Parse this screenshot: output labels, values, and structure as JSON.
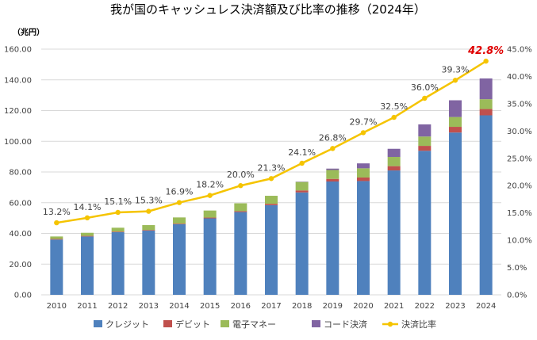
{
  "chart_data": {
    "type": "bar",
    "title": "我が国のキャッシュレス決済額及び比率の推移（2024年）",
    "y_unit_label": "（兆円）",
    "categories": [
      "2010",
      "2011",
      "2012",
      "2013",
      "2014",
      "2015",
      "2016",
      "2017",
      "2018",
      "2019",
      "2020",
      "2021",
      "2022",
      "2023",
      "2024"
    ],
    "series": [
      {
        "name": "クレジット",
        "color": "#4f81bd",
        "values": [
          36.0,
          38.0,
          40.8,
          41.8,
          46.0,
          49.8,
          53.9,
          58.4,
          66.7,
          73.8,
          74.1,
          81.0,
          93.8,
          105.7,
          116.9
        ]
      },
      {
        "name": "デビット",
        "color": "#c0504d",
        "values": [
          0.4,
          0.4,
          0.4,
          0.4,
          0.4,
          0.5,
          0.6,
          0.9,
          1.3,
          1.7,
          2.3,
          2.8,
          3.2,
          3.7,
          4.1
        ]
      },
      {
        "name": "電子マネー",
        "color": "#9bbb59",
        "values": [
          1.6,
          2.0,
          2.5,
          3.2,
          4.0,
          4.6,
          5.1,
          5.2,
          5.5,
          5.8,
          6.0,
          6.0,
          6.1,
          6.4,
          6.4
        ]
      },
      {
        "name": "コード決済",
        "color": "#8064a2",
        "values": [
          0,
          0,
          0,
          0,
          0,
          0,
          0,
          0,
          0.2,
          0.9,
          3.2,
          5.3,
          7.9,
          10.9,
          13.5
        ]
      }
    ],
    "ratio_series": {
      "name": "決済比率",
      "color": "#f5c400",
      "values": [
        13.2,
        14.1,
        15.1,
        15.3,
        16.9,
        18.2,
        20.0,
        21.3,
        24.1,
        26.8,
        29.7,
        32.5,
        36.0,
        39.3,
        42.8
      ],
      "labels": [
        "13.2%",
        "14.1%",
        "15.1%",
        "15.3%",
        "16.9%",
        "18.2%",
        "20.0%",
        "21.3%",
        "24.1%",
        "26.8%",
        "29.7%",
        "32.5%",
        "36.0%",
        "39.3%",
        "42.8%"
      ]
    },
    "ylim": [
      0,
      160
    ],
    "y_ticks": [
      "0.00",
      "20.00",
      "40.00",
      "60.00",
      "80.00",
      "100.00",
      "120.00",
      "140.00",
      "160.00"
    ],
    "y2lim": [
      0,
      45
    ],
    "y2_ticks": [
      "0.0%",
      "5.0%",
      "10.0%",
      "15.0%",
      "20.0%",
      "25.0%",
      "30.0%",
      "35.0%",
      "40.0%",
      "45.0%"
    ],
    "grid": true,
    "legend_position": "bottom"
  }
}
